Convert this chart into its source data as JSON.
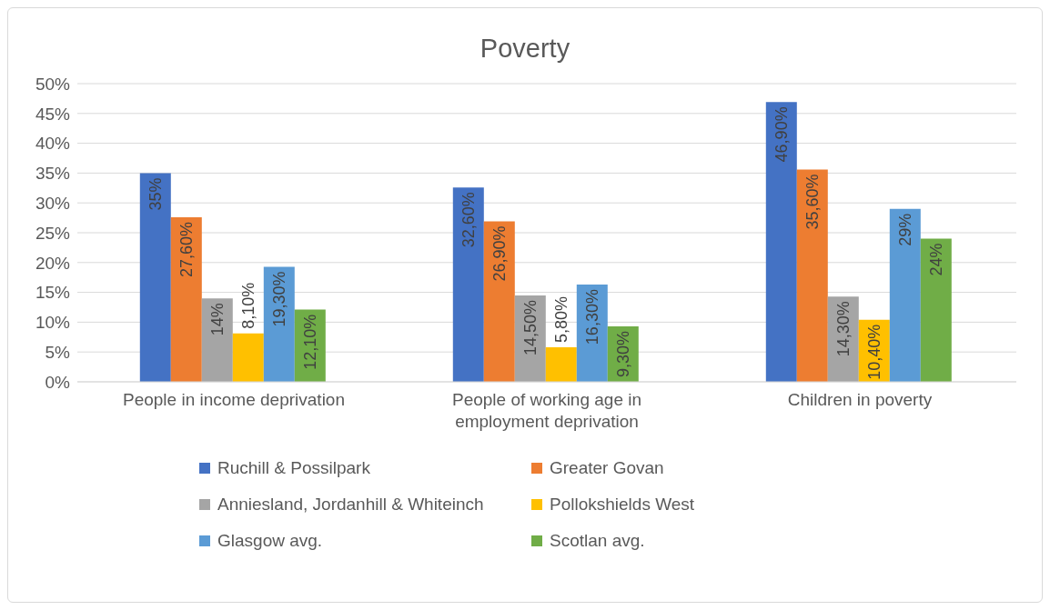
{
  "chart_data": {
    "type": "bar",
    "title": "Poverty",
    "categories": [
      "People in income deprivation",
      "People of working age in employment deprivation",
      "Children in poverty"
    ],
    "series": [
      {
        "name": "Ruchill & Possilpark",
        "color": "#4472c4",
        "values": [
          35,
          32.6,
          46.9
        ],
        "value_labels": [
          "35%",
          "32,60%",
          "46,90%"
        ]
      },
      {
        "name": "Greater Govan",
        "color": "#ed7d31",
        "values": [
          27.6,
          26.9,
          35.6
        ],
        "value_labels": [
          "27,60%",
          "26,90%",
          "35,60%"
        ]
      },
      {
        "name": "Anniesland, Jordanhill & Whiteinch",
        "color": "#a5a5a5",
        "values": [
          14,
          14.5,
          14.3
        ],
        "value_labels": [
          "14%",
          "14,50%",
          "14,30%"
        ]
      },
      {
        "name": "Pollokshields West",
        "color": "#ffc000",
        "values": [
          8.1,
          5.8,
          10.4
        ],
        "value_labels": [
          "8,10%",
          "5,80%",
          "10,40%"
        ]
      },
      {
        "name": "Glasgow avg.",
        "color": "#5b9bd5",
        "values": [
          19.3,
          16.3,
          29
        ],
        "value_labels": [
          "19,30%",
          "16,30%",
          "29%"
        ]
      },
      {
        "name": "Scotlan avg.",
        "color": "#70ad47",
        "values": [
          12.1,
          9.3,
          24
        ],
        "value_labels": [
          "12,10%",
          "9,30%",
          "24%"
        ]
      }
    ],
    "ylim": [
      0,
      50
    ],
    "yticks": [
      {
        "value": 0,
        "label": "0%"
      },
      {
        "value": 5,
        "label": "5%"
      },
      {
        "value": 10,
        "label": "10%"
      },
      {
        "value": 15,
        "label": "15%"
      },
      {
        "value": 20,
        "label": "20%"
      },
      {
        "value": 25,
        "label": "25%"
      },
      {
        "value": 30,
        "label": "30%"
      },
      {
        "value": 35,
        "label": "35%"
      },
      {
        "value": 40,
        "label": "40%"
      },
      {
        "value": 45,
        "label": "45%"
      },
      {
        "value": 50,
        "label": "50%"
      }
    ],
    "grid": "y",
    "legend": "bottom"
  }
}
